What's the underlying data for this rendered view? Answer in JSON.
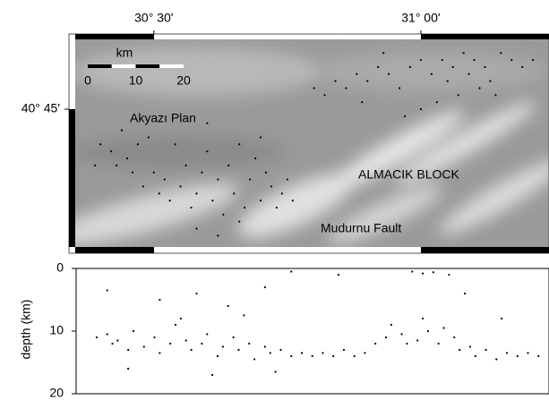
{
  "chart_data": [
    {
      "type": "scatter",
      "color": "#000000",
      "xlim": [
        30.341,
        31.24
      ],
      "ylim": [
        40.545,
        40.857
      ],
      "xticks": [
        {
          "value": 30.5,
          "label": "30° 30'"
        },
        {
          "value": 31.0,
          "label": "31° 00'"
        }
      ],
      "yticks": [
        {
          "value": 40.75,
          "label": "40° 45'"
        }
      ],
      "scale_bar": {
        "unit": "km",
        "ticks": [
          0,
          10,
          20
        ]
      },
      "annotations": [
        "Akyazı Plan",
        "ALMACIK BLOCK",
        "Mudurnu Fault"
      ],
      "x": [
        30.4,
        30.42,
        30.43,
        30.45,
        30.46,
        30.48,
        30.47,
        30.5,
        30.51,
        30.52,
        30.53,
        30.55,
        30.56,
        30.57,
        30.58,
        30.59,
        30.6,
        30.61,
        30.62,
        30.63,
        30.64,
        30.65,
        30.66,
        30.67,
        30.68,
        30.69,
        30.7,
        30.71,
        30.72,
        30.73,
        30.74,
        30.75,
        30.76,
        30.44,
        30.49,
        30.54,
        30.58,
        30.62,
        30.66,
        30.39,
        30.6,
        30.7,
        30.8,
        30.82,
        30.84,
        30.86,
        30.88,
        30.9,
        30.92,
        30.94,
        30.96,
        30.98,
        31.0,
        31.02,
        31.04,
        31.05,
        31.06,
        31.08,
        31.09,
        31.1,
        31.12,
        31.13,
        31.15,
        31.17,
        31.19,
        31.21,
        31.03,
        31.07,
        31.0,
        30.97,
        31.11,
        30.93,
        30.89,
        31.14
      ],
      "y": [
        40.7,
        40.69,
        40.67,
        40.68,
        40.66,
        40.64,
        40.7,
        40.66,
        40.63,
        40.65,
        40.62,
        40.64,
        40.67,
        40.61,
        40.63,
        40.66,
        40.69,
        40.62,
        40.65,
        40.6,
        40.67,
        40.63,
        40.7,
        40.61,
        40.65,
        40.68,
        40.62,
        40.66,
        40.64,
        40.61,
        40.63,
        40.65,
        40.62,
        40.72,
        40.71,
        40.7,
        40.58,
        40.57,
        40.59,
        40.67,
        40.73,
        40.71,
        40.78,
        40.77,
        40.79,
        40.78,
        40.8,
        40.79,
        40.81,
        40.8,
        40.78,
        40.81,
        40.82,
        40.8,
        40.82,
        40.79,
        40.81,
        40.83,
        40.8,
        40.82,
        40.81,
        40.79,
        40.83,
        40.82,
        40.81,
        40.82,
        40.76,
        40.77,
        40.75,
        40.74,
        40.78,
        40.83,
        40.76,
        40.77
      ]
    },
    {
      "type": "scatter",
      "color": "#000000",
      "ylabel": "depth (km)",
      "xlim": [
        30.341,
        31.24
      ],
      "ylim": [
        20,
        0
      ],
      "yticks": [
        0,
        10,
        20
      ],
      "x": [
        30.38,
        30.4,
        30.41,
        30.42,
        30.44,
        30.45,
        30.47,
        30.49,
        30.5,
        30.52,
        30.53,
        30.55,
        30.56,
        30.58,
        30.59,
        30.61,
        30.62,
        30.64,
        30.65,
        30.67,
        30.68,
        30.7,
        30.71,
        30.73,
        30.75,
        30.77,
        30.79,
        30.81,
        30.83,
        30.85,
        30.87,
        30.89,
        30.91,
        30.93,
        30.94,
        30.96,
        30.97,
        30.99,
        31.0,
        31.01,
        31.03,
        31.04,
        31.06,
        31.07,
        31.09,
        31.1,
        31.12,
        31.14,
        31.16,
        31.18,
        31.2,
        31.22,
        30.5,
        30.57,
        30.63,
        30.7,
        30.75,
        30.84,
        30.98,
        31.0,
        31.02,
        31.05,
        30.66,
        30.54,
        30.44,
        30.6,
        30.72,
        30.4,
        31.15,
        31.08
      ],
      "y": [
        11,
        10.5,
        12,
        11.5,
        13,
        10,
        12.5,
        11,
        13.5,
        12,
        9,
        11.5,
        13,
        12,
        10.5,
        14,
        12.5,
        11,
        13,
        12,
        14.5,
        12.5,
        13.5,
        13,
        14,
        13.5,
        14,
        13.5,
        14,
        13,
        14,
        13.5,
        12,
        11,
        9,
        10.5,
        12,
        11.5,
        8,
        10,
        12,
        9.5,
        11,
        13,
        12.5,
        14,
        13,
        14.5,
        13.5,
        14,
        13.5,
        14,
        5,
        4,
        6,
        3,
        0.5,
        1,
        0.5,
        0.8,
        0.6,
        1,
        7.5,
        8,
        16,
        17,
        16.5,
        3.5,
        8,
        4
      ]
    }
  ]
}
